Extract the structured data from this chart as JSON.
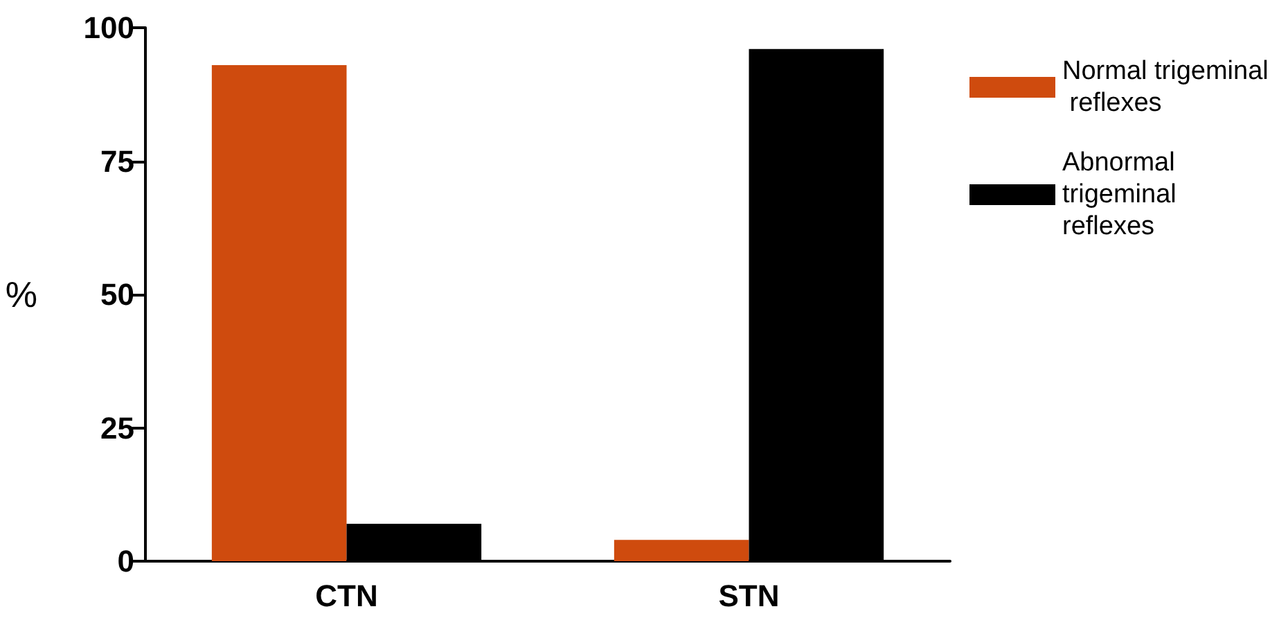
{
  "chart_data": {
    "type": "bar",
    "ylabel": "%",
    "categories": [
      "CTN",
      "STN"
    ],
    "series": [
      {
        "name": "Normal trigeminal reflexes",
        "color": "#cf4b0e",
        "values": [
          93,
          4
        ]
      },
      {
        "name": "Abnormal trigeminal reflexes",
        "color": "#000000",
        "values": [
          7,
          96
        ]
      }
    ],
    "ylim": [
      0,
      100
    ],
    "yticks": [
      0,
      25,
      50,
      75,
      100
    ],
    "grid": false,
    "legend": "top right"
  }
}
